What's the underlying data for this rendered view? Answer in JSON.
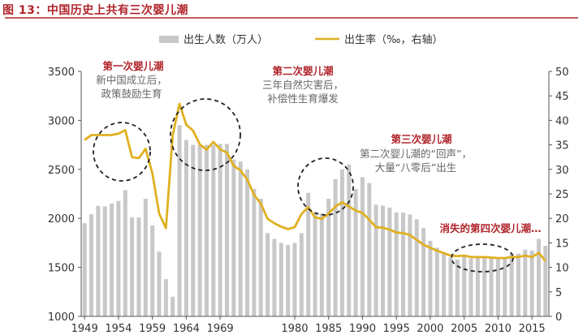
{
  "figure_title": "图 13：中国历史上共有三次婴儿潮",
  "colors": {
    "accent": "#b0242a",
    "bar": "#c8c8c8",
    "line": "#e0b020",
    "circle": "#222222"
  },
  "chart_data": {
    "type": "bar",
    "title": "",
    "xlabel": "",
    "ylabel": "",
    "y2label": "",
    "ylim": [
      1000,
      3500
    ],
    "y_ticks": [
      1000,
      1500,
      2000,
      2500,
      3000,
      3500
    ],
    "y2lim": [
      0,
      50
    ],
    "y2_ticks": [
      0,
      5,
      10,
      15,
      20,
      25,
      30,
      35,
      40,
      45,
      50
    ],
    "x_ticks": [
      1949,
      1954,
      1959,
      1964,
      1969,
      1980,
      1985,
      1990,
      1995,
      2000,
      2005,
      2010,
      2015
    ],
    "grid": false,
    "legend_position": "top",
    "x": [
      1949,
      1950,
      1951,
      1952,
      1953,
      1954,
      1955,
      1956,
      1957,
      1958,
      1959,
      1960,
      1961,
      1962,
      1963,
      1964,
      1965,
      1966,
      1967,
      1968,
      1969,
      1970,
      1971,
      1972,
      1973,
      1974,
      1975,
      1976,
      1977,
      1978,
      1979,
      1980,
      1981,
      1982,
      1983,
      1984,
      1985,
      1986,
      1987,
      1988,
      1989,
      1990,
      1991,
      1992,
      1993,
      1994,
      1995,
      1996,
      1997,
      1998,
      1999,
      2000,
      2001,
      2002,
      2003,
      2004,
      2005,
      2006,
      2007,
      2008,
      2009,
      2010,
      2011,
      2012,
      2013,
      2014,
      2015,
      2016,
      2017
    ],
    "series": [
      {
        "name": "出生人数（万人）",
        "type": "bar",
        "axis": "left",
        "values": [
          1950,
          2042,
          2128,
          2122,
          2151,
          2178,
          2288,
          2010,
          2010,
          2200,
          1928,
          1660,
          1380,
          1200,
          2950,
          2800,
          2750,
          2750,
          2750,
          2750,
          2760,
          2760,
          2600,
          2580,
          2500,
          2300,
          2200,
          1850,
          1790,
          1750,
          1730,
          1750,
          1850,
          2260,
          2050,
          2050,
          2200,
          2400,
          2500,
          2550,
          2300,
          2420,
          2360,
          2140,
          2130,
          2110,
          2060,
          2060,
          2040,
          1990,
          1900,
          1770,
          1700,
          1650,
          1600,
          1580,
          1620,
          1590,
          1600,
          1600,
          1600,
          1590,
          1600,
          1640,
          1640,
          1680,
          1670,
          1790,
          1720
        ]
      },
      {
        "name": "出生率（‰，右轴）",
        "type": "line",
        "axis": "right",
        "values": [
          36.0,
          37.0,
          37.0,
          37.0,
          37.0,
          37.3,
          38.0,
          32.5,
          32.3,
          34.2,
          29.2,
          21.0,
          18.0,
          37.0,
          43.4,
          39.1,
          37.9,
          35.1,
          34.0,
          35.6,
          34.1,
          33.4,
          30.7,
          29.8,
          27.9,
          24.8,
          23.0,
          19.9,
          19.0,
          18.3,
          17.8,
          18.2,
          20.9,
          22.3,
          20.2,
          19.9,
          21.0,
          22.4,
          23.3,
          22.4,
          21.6,
          21.1,
          19.7,
          18.2,
          18.1,
          17.7,
          17.1,
          17.0,
          16.6,
          15.6,
          14.6,
          14.0,
          13.4,
          12.9,
          12.4,
          12.3,
          12.4,
          12.1,
          12.1,
          12.1,
          12.0,
          11.9,
          11.9,
          12.1,
          12.1,
          12.4,
          12.1,
          12.95,
          11.3
        ]
      }
    ],
    "annotations": [
      {
        "title": "第一次婴儿潮",
        "body": [
          "新中国成立后，",
          "政策鼓励生育"
        ]
      },
      {
        "title": "第二次婴儿潮",
        "body": [
          "三年自然灾害后，",
          "补偿性生育爆发"
        ]
      },
      {
        "title": "第三次婴儿潮",
        "body": [
          "第二次婴儿潮的“回声”，",
          "大量“八零后”出生"
        ]
      },
      {
        "title": "消失的第四次婴儿潮…",
        "body": []
      }
    ]
  }
}
